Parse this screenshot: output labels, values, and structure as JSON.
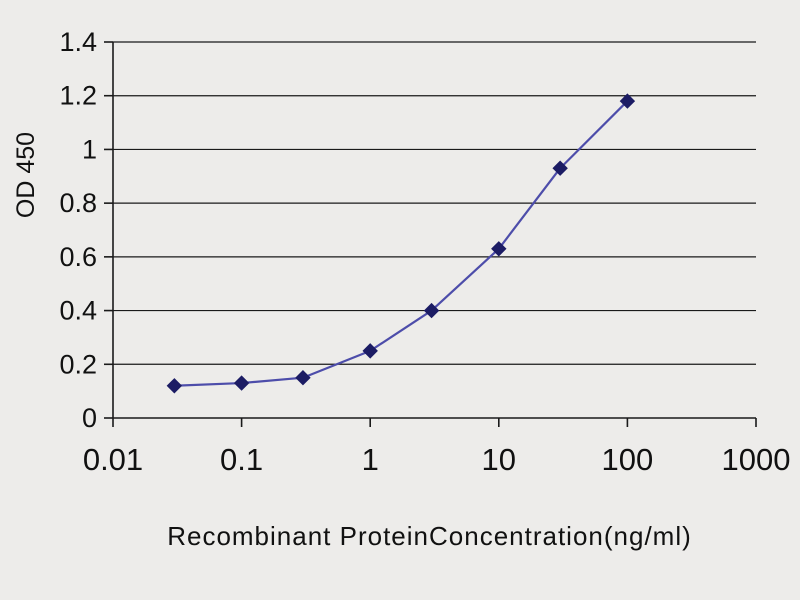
{
  "chart_data": {
    "type": "line",
    "title": "",
    "xlabel": "Recombinant ProteinConcentration(ng/ml)",
    "ylabel": "OD 450",
    "x_scale": "log",
    "xlim": [
      0.01,
      1000
    ],
    "ylim": [
      0,
      1.4
    ],
    "x": [
      0.03,
      0.1,
      0.3,
      1,
      3,
      10,
      30,
      100
    ],
    "series": [
      {
        "name": "OD 450",
        "values": [
          0.12,
          0.13,
          0.15,
          0.25,
          0.4,
          0.63,
          0.93,
          1.18
        ]
      }
    ],
    "xticks": [
      0.01,
      0.1,
      1,
      10,
      100,
      1000
    ],
    "xtick_labels": [
      "0.01",
      "0.1",
      "1",
      "10",
      "100",
      "1000"
    ],
    "yticks": [
      0,
      0.2,
      0.4,
      0.6,
      0.8,
      1,
      1.2,
      1.4
    ],
    "ytick_labels": [
      "0",
      "0.2",
      "0.4",
      "0.6",
      "0.8",
      "1",
      "1.2",
      "1.4"
    ],
    "grid": "horizontal",
    "legend_position": "none",
    "marker": "diamond",
    "colors": {
      "line": "#4d4daa",
      "marker": "#1c1c64",
      "grid": "#1a1a1a",
      "axis": "#1a1a1a",
      "text": "#111111",
      "background": "#edecea"
    }
  }
}
